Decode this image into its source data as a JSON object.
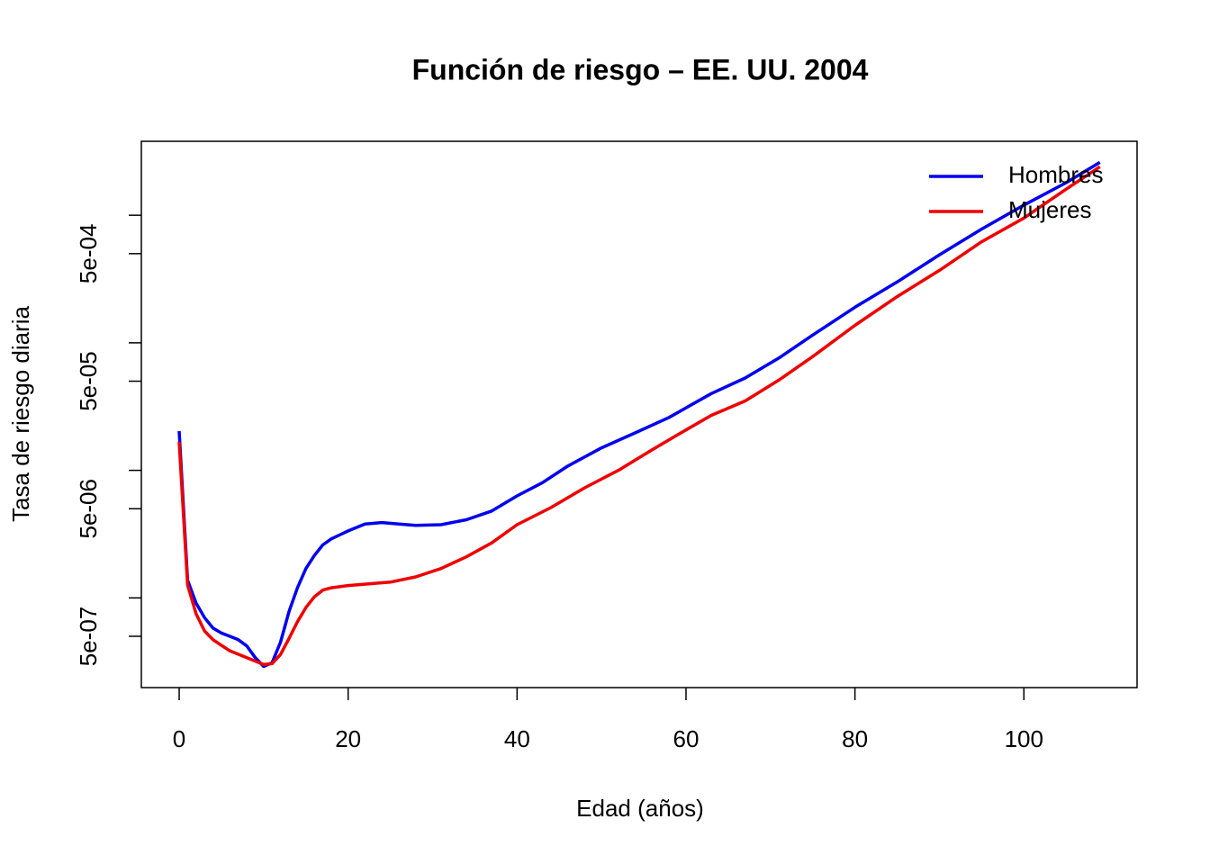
{
  "chart_data": {
    "type": "line",
    "title": "Función de riesgo – EE. UU. 2004",
    "x_label": "Edad (años)",
    "y_label": "Tasa de riesgo diaria",
    "log_y": true,
    "legend": "topright",
    "xlim": [
      -4.48,
      113.4
    ],
    "xticks": [
      0,
      20,
      40,
      60,
      80,
      100
    ],
    "ylim": [
      1.98e-07,
      0.0038
    ],
    "yticks": [
      {
        "value": 5e-07,
        "label": "5e-07"
      },
      {
        "value": 5e-06,
        "label": "5e-06"
      },
      {
        "value": 5e-05,
        "label": "5e-05"
      },
      {
        "value": 0.0005,
        "label": "5e-04"
      }
    ],
    "yminor_ticks": [
      1e-06,
      1e-05,
      0.0001,
      0.001
    ],
    "series": [
      {
        "name": "Hombres",
        "color": "#0000ee",
        "x": [
          0,
          1,
          2,
          3,
          4,
          5,
          6,
          7,
          8,
          9,
          10,
          11,
          12,
          13,
          14,
          15,
          16,
          17,
          18,
          20,
          22,
          24,
          26,
          28,
          31,
          34,
          37,
          40,
          43,
          46,
          50,
          54,
          58,
          63,
          67,
          71,
          75,
          80,
          85,
          90,
          95,
          100,
          105,
          109
        ],
        "values": [
          2.03e-05,
          1.37e-06,
          9.1e-07,
          7e-07,
          5.8e-07,
          5.3e-07,
          5e-07,
          4.7e-07,
          4.2e-07,
          3.4e-07,
          2.9e-07,
          3.1e-07,
          4.5e-07,
          7.8e-07,
          1.2e-06,
          1.7e-06,
          2.15e-06,
          2.6e-06,
          2.9e-06,
          3.35e-06,
          3.8e-06,
          3.9e-06,
          3.8e-06,
          3.7e-06,
          3.75e-06,
          4.1e-06,
          4.8e-06,
          6.3e-06,
          8e-06,
          1.08e-05,
          1.5e-05,
          1.97e-05,
          2.6e-05,
          4e-05,
          5.3e-05,
          7.6e-05,
          0.000115,
          0.00019,
          0.0003,
          0.00049,
          0.00078,
          0.0012,
          0.0018,
          0.0026
        ]
      },
      {
        "name": "Mujeres",
        "color": "#ee0000",
        "x": [
          0,
          1,
          2,
          3,
          4,
          5,
          6,
          8,
          10,
          11,
          12,
          13,
          14,
          15,
          16,
          17,
          18,
          20,
          25,
          28,
          31,
          34,
          37,
          40,
          44,
          48,
          52,
          56,
          59,
          63,
          67,
          71,
          75,
          80,
          85,
          90,
          95,
          100,
          105,
          109
        ],
        "values": [
          1.67e-05,
          1.26e-06,
          7.5e-07,
          5.5e-07,
          4.7e-07,
          4.25e-07,
          3.85e-07,
          3.4e-07,
          3e-07,
          3.05e-07,
          3.6e-07,
          4.8e-07,
          6.5e-07,
          8.4e-07,
          1.02e-06,
          1.15e-06,
          1.2e-06,
          1.25e-06,
          1.33e-06,
          1.46e-06,
          1.7e-06,
          2.1e-06,
          2.7e-06,
          3.75e-06,
          5.1e-06,
          7.3e-06,
          1e-05,
          1.45e-05,
          1.9e-05,
          2.7e-05,
          3.5e-05,
          5.1e-05,
          7.8e-05,
          0.000137,
          0.00023,
          0.00037,
          0.00062,
          0.00095,
          0.0016,
          0.0024
        ]
      }
    ]
  }
}
